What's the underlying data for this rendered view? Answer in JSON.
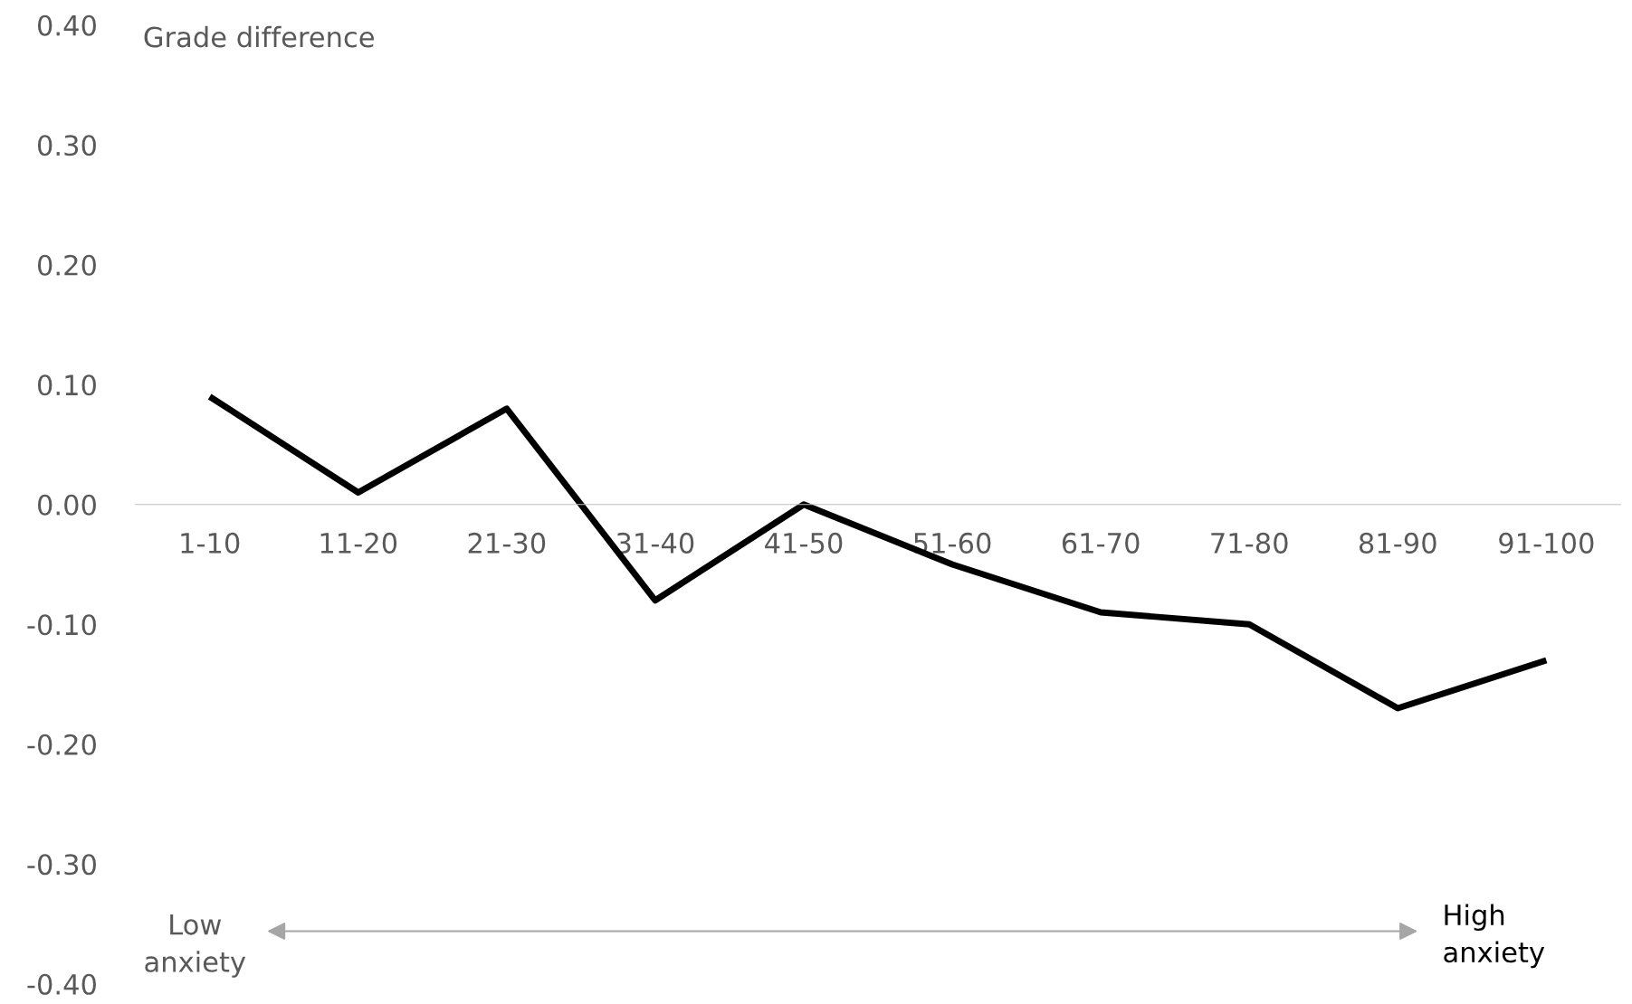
{
  "chart_data": {
    "type": "line",
    "ylabel": "Grade difference",
    "categories": [
      "1-10",
      "11-20",
      "21-30",
      "31-40",
      "41-50",
      "51-60",
      "61-70",
      "71-80",
      "81-90",
      "91-100"
    ],
    "series": [
      {
        "color": "#000000",
        "values": [
          0.09,
          0.01,
          0.08,
          -0.08,
          0.0,
          -0.05,
          -0.09,
          -0.1,
          -0.17,
          -0.13
        ]
      }
    ],
    "ylim": [
      -0.4,
      0.4
    ],
    "yticks": [
      {
        "value": -0.4,
        "label": "-0.40"
      },
      {
        "value": -0.3,
        "label": "-0.30"
      },
      {
        "value": -0.2,
        "label": "-0.20"
      },
      {
        "value": -0.1,
        "label": "-0.10"
      },
      {
        "value": 0.0,
        "label": "0.00"
      },
      {
        "value": 0.1,
        "label": "0.10"
      },
      {
        "value": 0.2,
        "label": "0.20"
      },
      {
        "value": 0.3,
        "label": "0.30"
      },
      {
        "value": 0.4,
        "label": "0.40"
      }
    ],
    "annotations": [
      "Low\nanxiety",
      "High\nanxiety"
    ],
    "grid": false,
    "marker": "none",
    "line_style": "solid",
    "legend": false
  }
}
